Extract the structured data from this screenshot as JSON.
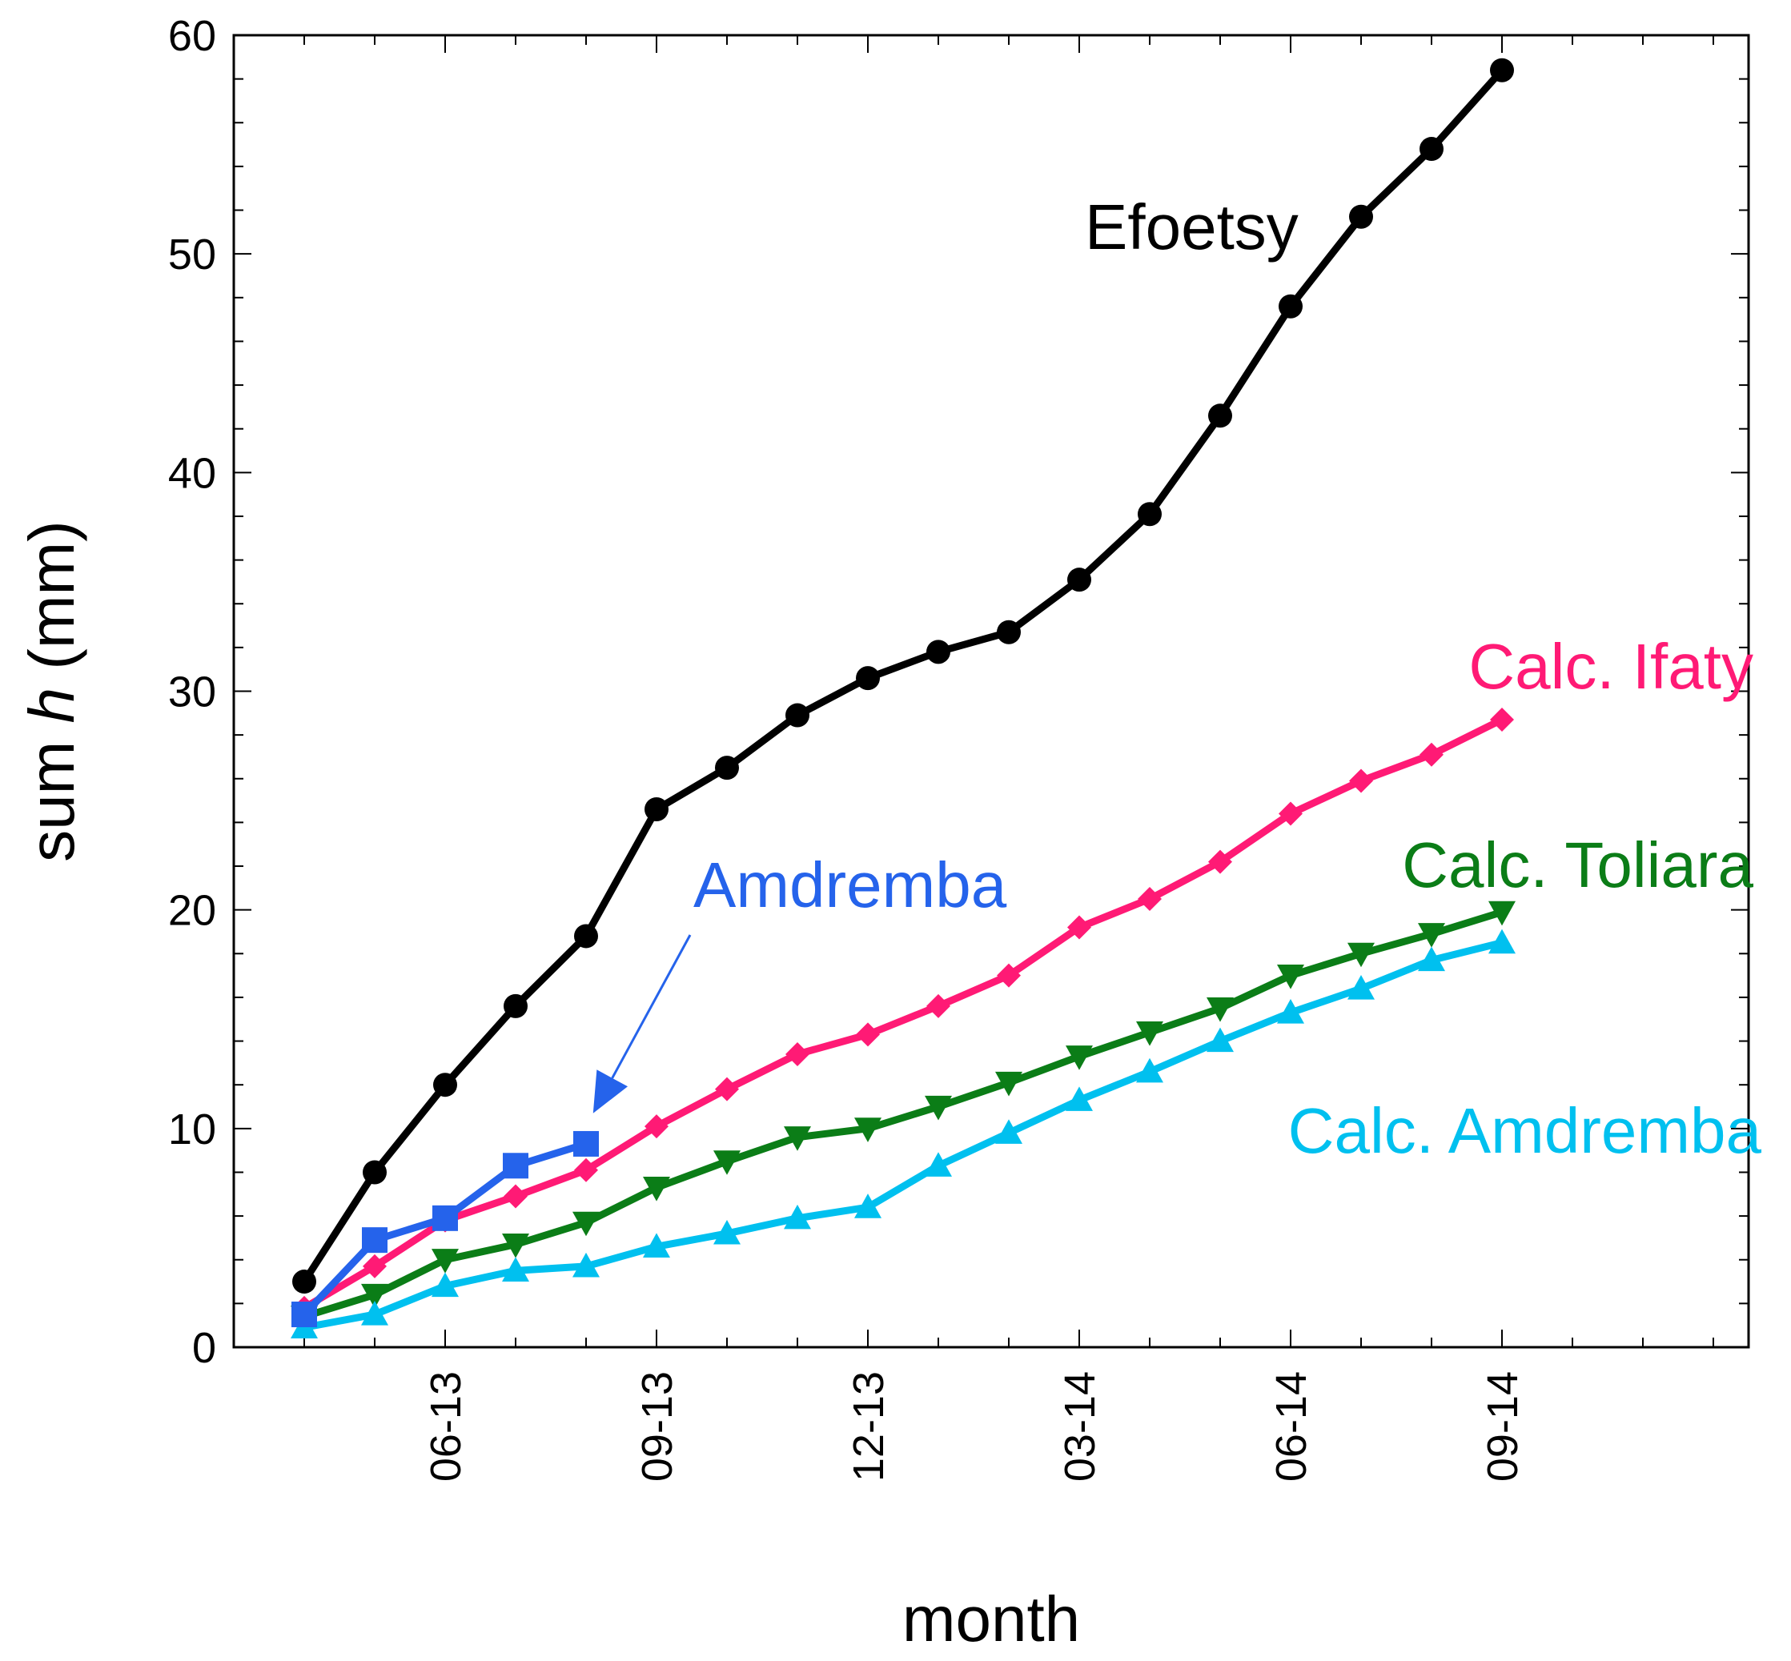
{
  "chart_data": {
    "type": "line",
    "title": "",
    "xlabel": "month",
    "ylabel_prefix": "sum ",
    "ylabel_var": "h",
    "ylabel_suffix": " (mm)",
    "ylim": [
      0,
      60
    ],
    "yticks": [
      0,
      10,
      20,
      30,
      40,
      50,
      60
    ],
    "xlim": [
      -1,
      20.5
    ],
    "xticks": [
      {
        "x": 2,
        "label": "06-13"
      },
      {
        "x": 5,
        "label": "09-13"
      },
      {
        "x": 8,
        "label": "12-13"
      },
      {
        "x": 11,
        "label": "03-14"
      },
      {
        "x": 14,
        "label": "06-14"
      },
      {
        "x": 17,
        "label": "09-14"
      }
    ],
    "series": [
      {
        "name": "Efoetsy",
        "label": "Efoetsy",
        "color": "#000000",
        "marker": "circle",
        "x": [
          0,
          1,
          2,
          3,
          4,
          5,
          6,
          7,
          8,
          9,
          10,
          11,
          12,
          13,
          14,
          15,
          16,
          17
        ],
        "values": [
          3.0,
          8.0,
          12.0,
          15.6,
          18.8,
          24.6,
          26.5,
          28.9,
          30.6,
          31.8,
          32.7,
          35.1,
          38.1,
          42.6,
          47.6,
          51.7,
          54.8,
          58.4
        ]
      },
      {
        "name": "Calc. Ifaty",
        "label": "Calc. Ifaty",
        "color": "#ff1a75",
        "marker": "diamond",
        "x": [
          0,
          1,
          2,
          3,
          4,
          5,
          6,
          7,
          8,
          9,
          10,
          11,
          12,
          13,
          14,
          15,
          16,
          17
        ],
        "values": [
          1.8,
          3.7,
          5.8,
          6.9,
          8.1,
          10.1,
          11.8,
          13.4,
          14.3,
          15.6,
          17.0,
          19.2,
          20.5,
          22.2,
          24.4,
          25.9,
          27.1,
          28.7
        ]
      },
      {
        "name": "Calc. Toliara",
        "label": "Calc. Toliara",
        "color": "#0b7d17",
        "marker": "triangle-down",
        "x": [
          0,
          1,
          2,
          3,
          4,
          5,
          6,
          7,
          8,
          9,
          10,
          11,
          12,
          13,
          14,
          15,
          16,
          17
        ],
        "values": [
          1.4,
          2.4,
          4.0,
          4.7,
          5.7,
          7.3,
          8.5,
          9.6,
          10.0,
          11.0,
          12.1,
          13.3,
          14.4,
          15.5,
          17.0,
          18.0,
          18.9,
          19.9
        ]
      },
      {
        "name": "Calc. Amdremba",
        "label": "Calc. Amdremba",
        "color": "#00c0ef",
        "marker": "triangle-up",
        "x": [
          0,
          1,
          2,
          3,
          4,
          5,
          6,
          7,
          8,
          9,
          10,
          11,
          12,
          13,
          14,
          15,
          16,
          17
        ],
        "values": [
          0.9,
          1.5,
          2.8,
          3.5,
          3.7,
          4.6,
          5.2,
          5.9,
          6.4,
          8.3,
          9.8,
          11.3,
          12.6,
          14.0,
          15.3,
          16.4,
          17.7,
          18.5
        ]
      },
      {
        "name": "Amdremba",
        "label": "Amdremba",
        "color": "#2563eb",
        "marker": "square",
        "x": [
          0,
          1,
          2,
          3,
          4
        ],
        "values": [
          1.5,
          4.9,
          5.9,
          8.3,
          9.3
        ]
      }
    ],
    "label_positions": [
      "upper-middle",
      "right",
      "right",
      "right",
      "middle-left"
    ],
    "annotations": [
      {
        "type": "arrow",
        "from_label": "Amdremba",
        "to": {
          "x": 4.1,
          "y": 10.7
        },
        "color": "#2563eb"
      }
    ]
  }
}
